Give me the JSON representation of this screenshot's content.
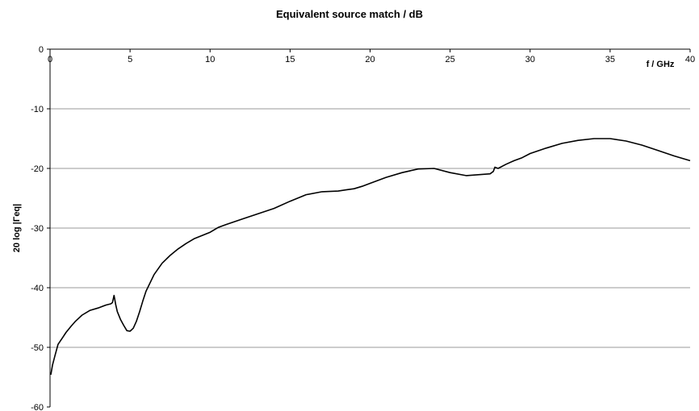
{
  "chart_data": {
    "type": "line",
    "title": "Equivalent source match / dB",
    "xlabel": "f / GHz",
    "ylabel": "20 log |Γeq|",
    "xlim": [
      0,
      40
    ],
    "ylim": [
      -60,
      0
    ],
    "xticks": [
      0,
      5,
      10,
      15,
      20,
      25,
      30,
      35,
      40
    ],
    "yticks": [
      0,
      -10,
      -20,
      -30,
      -40,
      -50,
      -60
    ],
    "grid": {
      "horizontal": true,
      "vertical": false
    },
    "colors": {
      "line": "#000000",
      "grid": "#9a9a9a",
      "axis": "#000000"
    },
    "series": [
      {
        "x": [
          0.05,
          0.15,
          0.3,
          0.5,
          0.8,
          1.0,
          1.3,
          1.6,
          2.0,
          2.5,
          3.0,
          3.5,
          3.8,
          3.9,
          4.0,
          4.1,
          4.2,
          4.4,
          4.6,
          4.8,
          5.0,
          5.2,
          5.4,
          5.6,
          5.8,
          6.0,
          6.5,
          7.0,
          7.5,
          8.0,
          8.5,
          9.0,
          10.0,
          10.5,
          11.0,
          12.0,
          13.0,
          14.0,
          15.0,
          16.0,
          17.0,
          18.0,
          18.5,
          19.0,
          19.5,
          20.0,
          21.0,
          22.0,
          23.0,
          24.0,
          25.0,
          26.0,
          27.0,
          27.5,
          27.7,
          27.8,
          28.0,
          28.5,
          29.0,
          29.5,
          30.0,
          31.0,
          32.0,
          33.0,
          34.0,
          35.0,
          36.0,
          37.0,
          38.0,
          39.0,
          40.0
        ],
        "y": [
          -54.6,
          -53.0,
          -51.5,
          -49.5,
          -48.3,
          -47.5,
          -46.5,
          -45.6,
          -44.6,
          -43.8,
          -43.4,
          -42.9,
          -42.7,
          -42.5,
          -41.3,
          -42.8,
          -44.0,
          -45.3,
          -46.3,
          -47.2,
          -47.3,
          -46.8,
          -45.6,
          -44.0,
          -42.2,
          -40.6,
          -37.8,
          -35.9,
          -34.6,
          -33.5,
          -32.6,
          -31.8,
          -30.7,
          -29.9,
          -29.4,
          -28.5,
          -27.6,
          -26.7,
          -25.5,
          -24.4,
          -23.9,
          -23.8,
          -23.6,
          -23.4,
          -23.0,
          -22.5,
          -21.5,
          -20.7,
          -20.1,
          -20.0,
          -20.7,
          -21.2,
          -21.0,
          -20.9,
          -20.5,
          -19.8,
          -20.0,
          -19.3,
          -18.7,
          -18.2,
          -17.5,
          -16.6,
          -15.8,
          -15.3,
          -15.0,
          -15.0,
          -15.4,
          -16.1,
          -17.0,
          -17.9,
          -18.7
        ]
      }
    ]
  }
}
